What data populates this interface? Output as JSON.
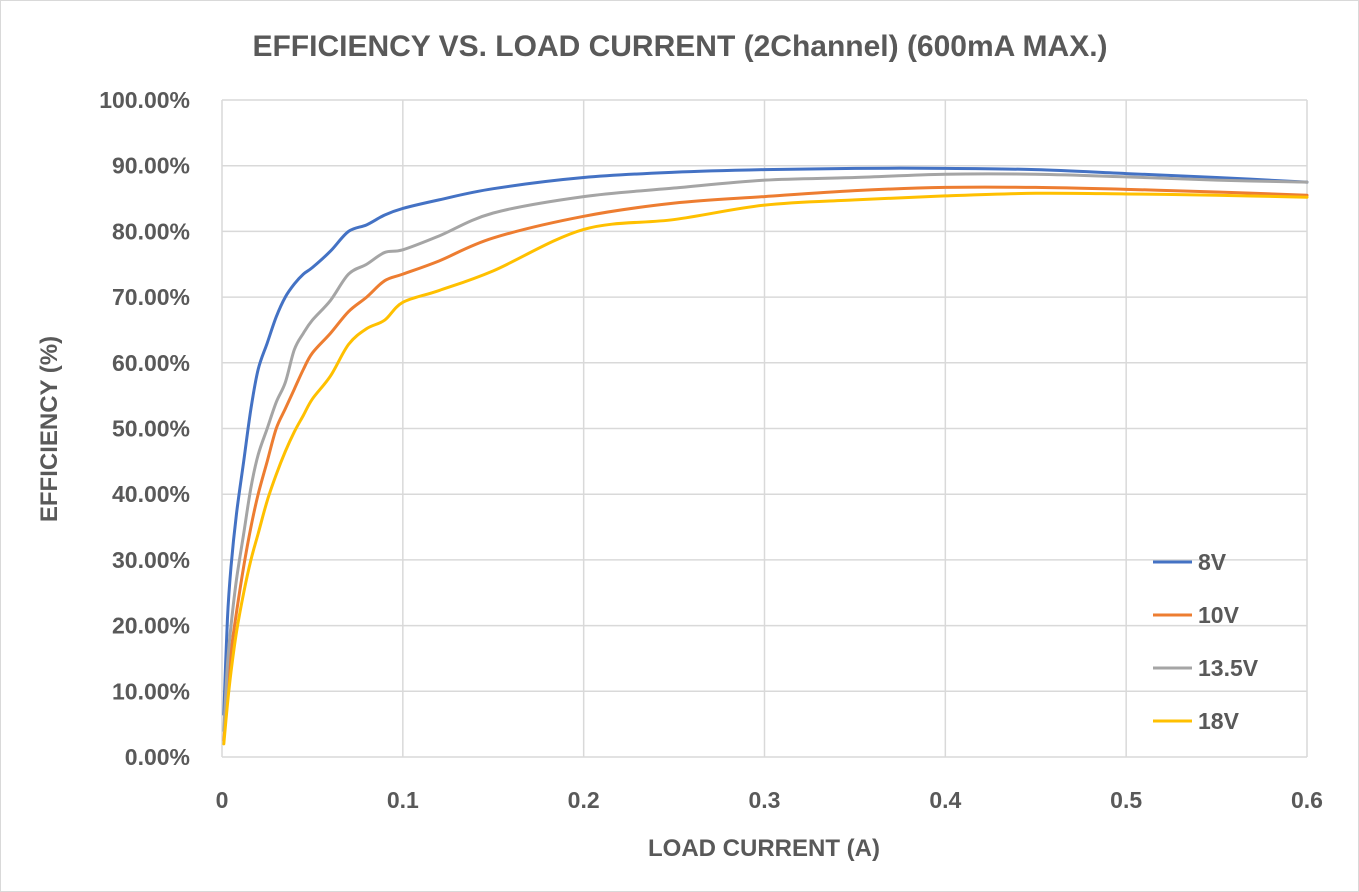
{
  "chart_data": {
    "type": "line",
    "title": "EFFICIENCY VS. LOAD CURRENT (2Channel) (600mA MAX.)",
    "xlabel": "LOAD CURRENT (A)",
    "ylabel": "EFFICIENCY (%)",
    "xlim": [
      0,
      0.6
    ],
    "ylim": [
      0,
      1.0
    ],
    "x_ticks": [
      "0",
      "0.1",
      "0.2",
      "0.3",
      "0.4",
      "0.5",
      "0.6"
    ],
    "y_ticks": [
      "0.00%",
      "10.00%",
      "20.00%",
      "30.00%",
      "40.00%",
      "50.00%",
      "60.00%",
      "70.00%",
      "80.00%",
      "90.00%",
      "100.00%"
    ],
    "grid": true,
    "legend_position": "bottom-right",
    "series": [
      {
        "name": "8V",
        "color": "#4472C4",
        "points": [
          [
            0.001,
            0.065
          ],
          [
            0.003,
            0.21
          ],
          [
            0.005,
            0.29
          ],
          [
            0.008,
            0.37
          ],
          [
            0.012,
            0.45
          ],
          [
            0.016,
            0.53
          ],
          [
            0.02,
            0.59
          ],
          [
            0.025,
            0.63
          ],
          [
            0.03,
            0.67
          ],
          [
            0.035,
            0.7
          ],
          [
            0.04,
            0.72
          ],
          [
            0.045,
            0.735
          ],
          [
            0.05,
            0.745
          ],
          [
            0.06,
            0.77
          ],
          [
            0.07,
            0.8
          ],
          [
            0.08,
            0.81
          ],
          [
            0.09,
            0.825
          ],
          [
            0.1,
            0.835
          ],
          [
            0.12,
            0.848
          ],
          [
            0.15,
            0.865
          ],
          [
            0.2,
            0.882
          ],
          [
            0.25,
            0.89
          ],
          [
            0.3,
            0.894
          ],
          [
            0.35,
            0.896
          ],
          [
            0.4,
            0.896
          ],
          [
            0.45,
            0.894
          ],
          [
            0.5,
            0.888
          ],
          [
            0.55,
            0.882
          ],
          [
            0.6,
            0.875
          ]
        ]
      },
      {
        "name": "10V",
        "color": "#ED7D31",
        "points": [
          [
            0.001,
            0.025
          ],
          [
            0.003,
            0.1
          ],
          [
            0.005,
            0.16
          ],
          [
            0.008,
            0.22
          ],
          [
            0.012,
            0.29
          ],
          [
            0.016,
            0.35
          ],
          [
            0.02,
            0.4
          ],
          [
            0.025,
            0.45
          ],
          [
            0.03,
            0.5
          ],
          [
            0.035,
            0.53
          ],
          [
            0.04,
            0.56
          ],
          [
            0.045,
            0.59
          ],
          [
            0.05,
            0.615
          ],
          [
            0.06,
            0.645
          ],
          [
            0.07,
            0.678
          ],
          [
            0.08,
            0.7
          ],
          [
            0.09,
            0.725
          ],
          [
            0.1,
            0.735
          ],
          [
            0.12,
            0.755
          ],
          [
            0.15,
            0.79
          ],
          [
            0.2,
            0.823
          ],
          [
            0.25,
            0.843
          ],
          [
            0.3,
            0.853
          ],
          [
            0.35,
            0.862
          ],
          [
            0.4,
            0.867
          ],
          [
            0.45,
            0.867
          ],
          [
            0.5,
            0.864
          ],
          [
            0.55,
            0.86
          ],
          [
            0.6,
            0.855
          ]
        ]
      },
      {
        "name": "13.5V",
        "color": "#A5A5A5",
        "points": [
          [
            0.001,
            0.04
          ],
          [
            0.003,
            0.14
          ],
          [
            0.005,
            0.2
          ],
          [
            0.008,
            0.27
          ],
          [
            0.012,
            0.34
          ],
          [
            0.016,
            0.41
          ],
          [
            0.02,
            0.46
          ],
          [
            0.025,
            0.5
          ],
          [
            0.03,
            0.54
          ],
          [
            0.035,
            0.57
          ],
          [
            0.04,
            0.62
          ],
          [
            0.045,
            0.645
          ],
          [
            0.05,
            0.665
          ],
          [
            0.06,
            0.695
          ],
          [
            0.07,
            0.735
          ],
          [
            0.08,
            0.75
          ],
          [
            0.09,
            0.768
          ],
          [
            0.1,
            0.772
          ],
          [
            0.12,
            0.793
          ],
          [
            0.15,
            0.828
          ],
          [
            0.2,
            0.853
          ],
          [
            0.25,
            0.866
          ],
          [
            0.3,
            0.878
          ],
          [
            0.35,
            0.882
          ],
          [
            0.4,
            0.887
          ],
          [
            0.45,
            0.887
          ],
          [
            0.5,
            0.883
          ],
          [
            0.55,
            0.878
          ],
          [
            0.6,
            0.875
          ]
        ]
      },
      {
        "name": "18V",
        "color": "#FFC000",
        "points": [
          [
            0.001,
            0.02
          ],
          [
            0.003,
            0.08
          ],
          [
            0.005,
            0.13
          ],
          [
            0.008,
            0.19
          ],
          [
            0.012,
            0.25
          ],
          [
            0.016,
            0.3
          ],
          [
            0.02,
            0.34
          ],
          [
            0.025,
            0.39
          ],
          [
            0.03,
            0.43
          ],
          [
            0.035,
            0.465
          ],
          [
            0.04,
            0.495
          ],
          [
            0.045,
            0.52
          ],
          [
            0.05,
            0.545
          ],
          [
            0.06,
            0.58
          ],
          [
            0.07,
            0.628
          ],
          [
            0.08,
            0.652
          ],
          [
            0.09,
            0.665
          ],
          [
            0.1,
            0.692
          ],
          [
            0.12,
            0.71
          ],
          [
            0.15,
            0.74
          ],
          [
            0.2,
            0.803
          ],
          [
            0.25,
            0.818
          ],
          [
            0.3,
            0.84
          ],
          [
            0.35,
            0.848
          ],
          [
            0.4,
            0.854
          ],
          [
            0.45,
            0.858
          ],
          [
            0.5,
            0.857
          ],
          [
            0.55,
            0.855
          ],
          [
            0.6,
            0.852
          ]
        ]
      }
    ]
  }
}
